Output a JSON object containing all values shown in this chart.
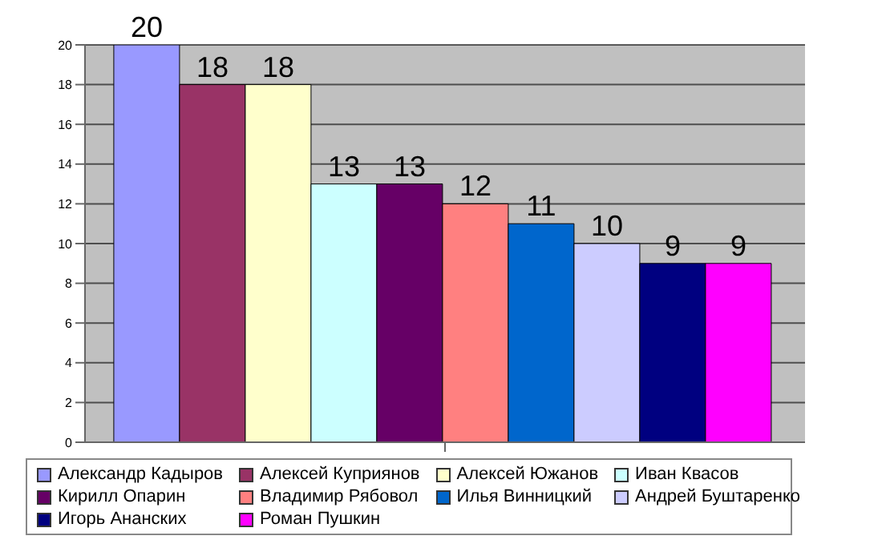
{
  "chart_data": {
    "type": "bar",
    "categories": [
      null
    ],
    "series": [
      {
        "name": "Александр Кадыров",
        "color": "#9999ff",
        "values": [
          20
        ]
      },
      {
        "name": "Алексей Куприянов",
        "color": "#993366",
        "values": [
          18
        ]
      },
      {
        "name": "Алексей Южанов",
        "color": "#ffffcc",
        "values": [
          18
        ]
      },
      {
        "name": "Иван Квасов",
        "color": "#ccffff",
        "values": [
          13
        ]
      },
      {
        "name": "Кирилл Опарин",
        "color": "#660066",
        "values": [
          13
        ]
      },
      {
        "name": "Владимир Рябовол",
        "color": "#ff8080",
        "values": [
          12
        ]
      },
      {
        "name": "Илья Винницкий",
        "color": "#0066cc",
        "values": [
          11
        ]
      },
      {
        "name": "Андрей Буштаренко",
        "color": "#ccccff",
        "values": [
          10
        ]
      },
      {
        "name": "Игорь Ананских",
        "color": "#000080",
        "values": [
          9
        ]
      },
      {
        "name": "Роман Пушкин",
        "color": "#ff00ff",
        "values": [
          9
        ]
      }
    ],
    "ylim": [
      0,
      20
    ],
    "yticks": [
      0,
      2,
      4,
      6,
      8,
      10,
      12,
      14,
      16,
      18,
      20
    ],
    "grid": "y",
    "legend": "bottom",
    "data_labels": true
  }
}
